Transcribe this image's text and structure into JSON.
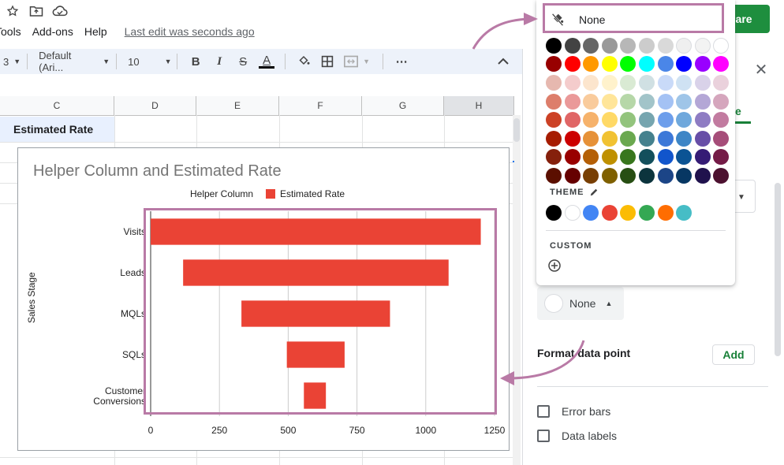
{
  "menu": {
    "items": [
      "Tools",
      "Add-ons",
      "Help"
    ],
    "last_edit": "Last edit was seconds ago",
    "tools_visible": "Tools"
  },
  "share": {
    "label": "hare"
  },
  "toolbar": {
    "zoom": "3",
    "font": "Default (Ari...",
    "size": "10",
    "bold": "B",
    "italic": "I",
    "strike": "S",
    "textcolor": "A",
    "more": "⋯"
  },
  "grid": {
    "columns": [
      "C",
      "D",
      "E",
      "F",
      "G",
      "H"
    ],
    "cell_label": "Estimated Rate"
  },
  "chart": {
    "title": "Helper Column and Estimated Rate",
    "legend": [
      "Helper Column",
      "Estimated Rate"
    ],
    "ylabel": "Sales Stage",
    "colors": {
      "estimated": "#ea4335",
      "helper": "#ffffff"
    }
  },
  "chart_data": {
    "type": "bar",
    "orientation": "horizontal",
    "stacked": true,
    "title": "Helper Column and Estimated Rate",
    "xlabel": "",
    "ylabel": "Sales Stage",
    "categories": [
      "Visits",
      "Leads",
      "MQLs",
      "SQLs",
      "Customer Conversions"
    ],
    "series": [
      {
        "name": "Helper Column",
        "values": [
          0,
          118,
          330,
          495,
          557
        ],
        "color": "#ffffff"
      },
      {
        "name": "Estimated Rate",
        "values": [
          1200,
          965,
          540,
          210,
          80
        ],
        "color": "#ea4335"
      }
    ],
    "xticks": [
      "0",
      "250",
      "500",
      "750",
      "1000",
      "1250"
    ],
    "xlim": [
      0,
      1250
    ],
    "grid": true,
    "legend_position": "top"
  },
  "panel": {
    "tab_fragment": "ze",
    "none_label": "None",
    "format_data_point": "Format data point",
    "add_label": "Add",
    "error_bars": "Error bars",
    "data_labels": "Data labels"
  },
  "palette": {
    "none_label": "None",
    "theme_label": "THEME",
    "custom_label": "CUSTOM",
    "rows": [
      [
        "#000000",
        "#434343",
        "#666666",
        "#999999",
        "#b7b7b7",
        "#cccccc",
        "#d9d9d9",
        "#efefef",
        "#f3f3f3",
        "#ffffff"
      ],
      [
        "#980000",
        "#ff0000",
        "#ff9900",
        "#ffff00",
        "#00ff00",
        "#00ffff",
        "#4a86e8",
        "#0000ff",
        "#9900ff",
        "#ff00ff"
      ],
      [
        "#e6b8af",
        "#f4cccc",
        "#fce5cd",
        "#fff2cc",
        "#d9ead3",
        "#d0e0e3",
        "#c9daf8",
        "#cfe2f3",
        "#d9d2e9",
        "#ead1dc"
      ],
      [
        "#dd7e6b",
        "#ea9999",
        "#f9cb9c",
        "#ffe599",
        "#b6d7a8",
        "#a2c4c9",
        "#a4c2f4",
        "#9fc5e8",
        "#b4a7d6",
        "#d5a6bd"
      ],
      [
        "#cc4125",
        "#e06666",
        "#f6b26b",
        "#ffd966",
        "#93c47d",
        "#76a5af",
        "#6d9eeb",
        "#6fa8dc",
        "#8e7cc3",
        "#c27ba0"
      ],
      [
        "#a61c00",
        "#cc0000",
        "#e69138",
        "#f1c232",
        "#6aa84f",
        "#45818e",
        "#3c78d8",
        "#3d85c6",
        "#674ea7",
        "#a64d79"
      ],
      [
        "#85200c",
        "#990000",
        "#b45f06",
        "#bf9000",
        "#38761d",
        "#134f5c",
        "#1155cc",
        "#0b5394",
        "#351c75",
        "#741b47"
      ],
      [
        "#5b0f00",
        "#660000",
        "#783f04",
        "#7f6000",
        "#274e13",
        "#0c343d",
        "#1c4587",
        "#073763",
        "#20124d",
        "#4c1130"
      ]
    ],
    "theme": [
      "#000000",
      "#ffffff",
      "#4285f4",
      "#ea4335",
      "#fbbc04",
      "#34a853",
      "#ff6d01",
      "#46bdc6"
    ]
  },
  "icons": [
    "star-icon",
    "move-folder-icon",
    "cloud-saved-icon",
    "fill-color-icon",
    "borders-icon",
    "merge-cells-icon",
    "collapse-icon",
    "close-icon",
    "no-color-icon",
    "pencil-icon",
    "add-custom-color-icon"
  ],
  "annotation_color": "#b97aa6"
}
